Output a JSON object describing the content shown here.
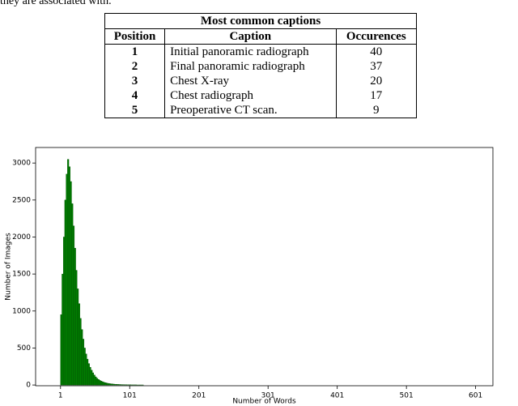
{
  "intro_text": "they are associated with.",
  "table": {
    "title": "Most common captions",
    "headers": [
      "Position",
      "Caption",
      "Occurences"
    ],
    "rows": [
      [
        1,
        "Initial panoramic radiograph",
        40
      ],
      [
        2,
        "Final panoramic radiograph",
        37
      ],
      [
        3,
        "Chest X-ray",
        20
      ],
      [
        4,
        "Chest radiograph",
        17
      ],
      [
        5,
        "Preoperative CT scan.",
        9
      ]
    ]
  },
  "chart_data": {
    "type": "histogram",
    "xlabel": "Number of Words",
    "ylabel": "Number of Images",
    "color": "#008000",
    "bins": [
      1,
      3,
      5,
      7,
      9,
      11,
      13,
      15,
      17,
      19,
      21,
      23,
      25,
      27,
      29,
      31,
      33,
      35,
      37,
      39,
      41,
      43,
      45,
      47,
      49,
      51,
      53,
      55,
      57,
      59,
      61,
      63,
      65,
      67,
      69,
      71,
      73,
      75,
      77,
      79,
      81,
      83,
      85,
      87,
      89,
      91,
      93,
      95,
      97,
      99,
      101,
      103,
      105,
      107,
      109,
      111,
      113,
      115,
      117,
      119,
      121
    ],
    "counts": [
      950,
      1500,
      2000,
      2500,
      2850,
      3050,
      2950,
      2750,
      2450,
      2150,
      1850,
      1550,
      1300,
      1100,
      900,
      750,
      620,
      500,
      420,
      350,
      290,
      240,
      200,
      165,
      135,
      110,
      90,
      75,
      62,
      52,
      44,
      37,
      31,
      26,
      22,
      19,
      16,
      14,
      12,
      10,
      9,
      8,
      7,
      6,
      5,
      5,
      4,
      4,
      3,
      3,
      3,
      2,
      2,
      2,
      2,
      1,
      1,
      1,
      1,
      1
    ],
    "xlim": [
      -35,
      626
    ],
    "xticks": [
      1,
      101,
      201,
      301,
      401,
      501,
      601
    ],
    "ylim": [
      -10,
      3210
    ],
    "yticks": [
      0,
      500,
      1000,
      1500,
      2000,
      2500,
      3000
    ]
  }
}
